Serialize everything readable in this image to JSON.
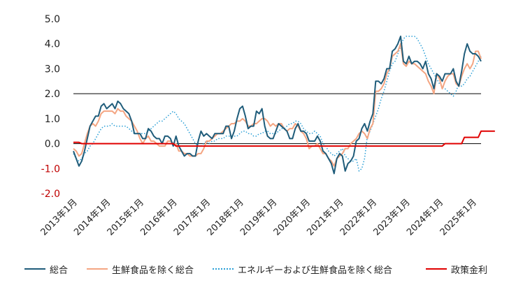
{
  "chart_data": {
    "type": "line",
    "title": "",
    "xlabel": "",
    "ylabel": "",
    "ylim": [
      -2.0,
      5.0
    ],
    "yticks": [
      "5.0",
      "4.0",
      "3.0",
      "2.0",
      "1.0",
      "0.0",
      "-1.0",
      "-2.0"
    ],
    "ytick_negative_color": "#c00000",
    "reference_lines": [
      2.0,
      0.0
    ],
    "grid": false,
    "legend_position": "bottom",
    "x_tick_labels": [
      "2013年1月",
      "2014年1月",
      "2015年1月",
      "2016年1月",
      "2017年1月",
      "2018年1月",
      "2019年1月",
      "2020年1月",
      "2021年1月",
      "2022年1月",
      "2023年1月",
      "2024年1月",
      "2025年1月"
    ],
    "x_start": "2013-01",
    "series": [
      {
        "name": "総合",
        "color": "#1f5c7a",
        "style": "solid",
        "values": [
          -0.3,
          -0.6,
          -0.9,
          -0.7,
          -0.3,
          0.2,
          0.7,
          0.9,
          1.1,
          1.1,
          1.5,
          1.6,
          1.4,
          1.5,
          1.6,
          1.4,
          1.7,
          1.6,
          1.4,
          1.3,
          1.2,
          0.9,
          0.4,
          0.4,
          0.4,
          0.2,
          0.2,
          0.6,
          0.5,
          0.3,
          0.2,
          0.2,
          0.0,
          0.3,
          0.3,
          0.2,
          -0.1,
          0.3,
          -0.1,
          -0.3,
          -0.5,
          -0.4,
          -0.4,
          -0.5,
          -0.5,
          0.1,
          0.5,
          0.3,
          0.4,
          0.3,
          0.2,
          0.4,
          0.4,
          0.4,
          0.4,
          0.7,
          0.7,
          0.2,
          0.5,
          1.0,
          1.4,
          1.5,
          1.1,
          0.6,
          0.7,
          0.7,
          1.3,
          1.2,
          1.4,
          0.7,
          0.3,
          0.2,
          0.2,
          0.5,
          0.8,
          0.7,
          0.6,
          0.5,
          0.2,
          0.2,
          0.6,
          0.8,
          0.5,
          0.5,
          0.4,
          0.1,
          0.1,
          0.1,
          0.3,
          0.1,
          -0.3,
          -0.4,
          -0.6,
          -0.8,
          -1.2,
          -0.6,
          -0.4,
          -0.5,
          -1.1,
          -0.8,
          -0.7,
          -0.5,
          0.1,
          0.2,
          0.6,
          0.8,
          0.5,
          0.9,
          1.2,
          2.5,
          2.5,
          2.4,
          2.6,
          3.0,
          3.0,
          3.7,
          3.8,
          4.0,
          4.3,
          3.3,
          3.2,
          3.5,
          3.2,
          3.3,
          3.3,
          3.2,
          3.0,
          3.3,
          2.8,
          2.6,
          2.2,
          2.8,
          2.7,
          2.5,
          2.8,
          2.8,
          2.8,
          3.0,
          2.5,
          2.3,
          2.9,
          3.6,
          4.0,
          3.7,
          3.6,
          3.6,
          3.5,
          3.3
        ]
      },
      {
        "name": "生鮮食品を除く総合",
        "color": "#f4a582",
        "style": "solid",
        "values": [
          -0.2,
          -0.3,
          -0.5,
          -0.4,
          0.0,
          0.4,
          0.7,
          0.8,
          0.7,
          0.9,
          1.2,
          1.3,
          1.3,
          1.3,
          1.3,
          1.2,
          1.4,
          1.3,
          1.3,
          1.1,
          1.0,
          0.9,
          0.7,
          0.5,
          0.2,
          0.0,
          0.2,
          0.3,
          0.1,
          0.1,
          0.0,
          -0.1,
          -0.1,
          -0.1,
          0.1,
          0.1,
          0.0,
          0.0,
          -0.3,
          -0.3,
          -0.4,
          -0.4,
          -0.5,
          -0.5,
          -0.5,
          -0.4,
          -0.4,
          -0.2,
          0.1,
          0.1,
          0.2,
          0.3,
          0.4,
          0.4,
          0.5,
          0.6,
          0.7,
          0.8,
          0.8,
          0.9,
          0.9,
          1.0,
          0.9,
          0.7,
          0.7,
          0.8,
          0.8,
          0.9,
          1.0,
          1.0,
          0.9,
          0.7,
          0.8,
          0.7,
          0.8,
          0.8,
          0.6,
          0.5,
          0.6,
          0.6,
          0.8,
          0.7,
          0.5,
          0.4,
          0.2,
          -0.2,
          -0.1,
          -0.1,
          0.0,
          -0.2,
          -0.4,
          -0.4,
          -0.6,
          -0.7,
          -0.9,
          -0.6,
          -0.5,
          -0.4,
          -0.2,
          -0.2,
          0.0,
          0.1,
          0.2,
          0.4,
          0.5,
          0.4,
          0.2,
          0.6,
          0.8,
          2.1,
          2.1,
          2.2,
          2.4,
          2.8,
          3.0,
          3.5,
          3.6,
          3.7,
          4.0,
          3.2,
          3.1,
          3.3,
          3.2,
          3.2,
          3.1,
          3.0,
          2.9,
          2.8,
          2.5,
          2.3,
          2.0,
          2.8,
          2.6,
          2.2,
          2.5,
          2.7,
          2.8,
          2.8,
          2.4,
          2.3,
          2.7,
          3.0,
          3.2,
          3.0,
          3.2,
          3.7,
          3.7,
          3.4
        ]
      },
      {
        "name": "エネルギーおよび生鮮食品を除く総合",
        "color": "#2a9fd6",
        "style": "dotted",
        "values": [
          -0.4,
          -0.6,
          -0.7,
          -0.6,
          -0.4,
          -0.3,
          -0.1,
          0.0,
          0.2,
          0.4,
          0.6,
          0.7,
          0.7,
          0.7,
          0.8,
          0.7,
          0.7,
          0.7,
          0.7,
          0.7,
          0.6,
          0.5,
          0.4,
          0.4,
          0.4,
          0.4,
          0.4,
          0.5,
          0.6,
          0.7,
          0.8,
          0.9,
          0.9,
          1.0,
          1.1,
          1.2,
          1.3,
          1.2,
          1.0,
          0.9,
          0.8,
          0.6,
          0.4,
          0.2,
          0.0,
          -0.1,
          -0.1,
          0.0,
          0.1,
          0.0,
          0.1,
          0.1,
          0.2,
          0.2,
          0.2,
          0.3,
          0.3,
          0.3,
          0.3,
          0.3,
          0.4,
          0.5,
          0.5,
          0.4,
          0.4,
          0.3,
          0.3,
          0.4,
          0.4,
          0.5,
          0.5,
          0.4,
          0.4,
          0.4,
          0.5,
          0.6,
          0.6,
          0.7,
          0.8,
          0.8,
          0.9,
          0.9,
          0.8,
          0.6,
          0.5,
          0.4,
          0.4,
          0.5,
          0.4,
          0.3,
          0.0,
          -0.1,
          -0.3,
          -0.4,
          -0.5,
          -0.4,
          -0.3,
          -0.2,
          -0.5,
          -0.6,
          -0.7,
          -0.7,
          -0.6,
          -1.1,
          -1.0,
          -0.6,
          0.3,
          0.5,
          0.8,
          1.1,
          1.4,
          1.8,
          2.1,
          2.5,
          2.9,
          3.2,
          3.3,
          3.6,
          3.9,
          4.2,
          4.3,
          4.3,
          4.3,
          4.3,
          4.2,
          4.0,
          3.8,
          3.5,
          3.2,
          3.0,
          2.8,
          2.6,
          2.4,
          2.3,
          2.2,
          2.1,
          2.0,
          1.9,
          2.1,
          2.4,
          2.3,
          2.4,
          2.6,
          2.7,
          2.9,
          3.1,
          3.3,
          3.5
        ]
      },
      {
        "name": "政策金利",
        "color": "#e00000",
        "style": "solid",
        "values": [
          0.05,
          0.05,
          0.05,
          0.0,
          0.0,
          0.0,
          0.0,
          0.0,
          0.0,
          0.0,
          0.0,
          0.0,
          0.0,
          0.0,
          0.0,
          0.0,
          0.0,
          0.0,
          0.0,
          0.0,
          0.0,
          0.0,
          0.0,
          0.0,
          0.0,
          0.0,
          0.0,
          0.0,
          0.0,
          0.0,
          0.0,
          0.0,
          0.0,
          0.0,
          0.0,
          0.0,
          0.0,
          -0.1,
          -0.1,
          -0.1,
          -0.1,
          -0.1,
          -0.1,
          -0.1,
          -0.1,
          -0.1,
          -0.1,
          -0.1,
          -0.1,
          -0.1,
          -0.1,
          -0.1,
          -0.1,
          -0.1,
          -0.1,
          -0.1,
          -0.1,
          -0.1,
          -0.1,
          -0.1,
          -0.1,
          -0.1,
          -0.1,
          -0.1,
          -0.1,
          -0.1,
          -0.1,
          -0.1,
          -0.1,
          -0.1,
          -0.1,
          -0.1,
          -0.1,
          -0.1,
          -0.1,
          -0.1,
          -0.1,
          -0.1,
          -0.1,
          -0.1,
          -0.1,
          -0.1,
          -0.1,
          -0.1,
          -0.1,
          -0.1,
          -0.1,
          -0.1,
          -0.1,
          -0.1,
          -0.1,
          -0.1,
          -0.1,
          -0.1,
          -0.1,
          -0.1,
          -0.1,
          -0.1,
          -0.1,
          -0.1,
          -0.1,
          -0.1,
          -0.1,
          -0.1,
          -0.1,
          -0.1,
          -0.1,
          -0.1,
          -0.1,
          -0.1,
          -0.1,
          -0.1,
          -0.1,
          -0.1,
          -0.1,
          -0.1,
          -0.1,
          -0.1,
          -0.1,
          -0.1,
          -0.1,
          -0.1,
          -0.1,
          -0.1,
          -0.1,
          -0.1,
          -0.1,
          -0.1,
          -0.1,
          -0.1,
          -0.1,
          -0.1,
          -0.1,
          -0.1,
          0.0,
          0.0,
          0.0,
          0.0,
          0.0,
          0.0,
          0.0,
          0.25,
          0.25,
          0.25,
          0.25,
          0.25,
          0.25,
          0.5,
          0.5,
          0.5,
          0.5,
          0.5,
          0.5
        ]
      }
    ]
  }
}
